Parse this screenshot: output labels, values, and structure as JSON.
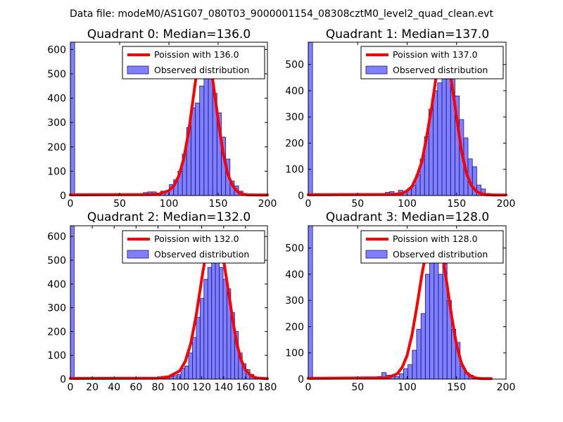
{
  "figure": {
    "suptitle": "Data file: modeM0/AS1G07_080T03_9000001154_08308cztM0_level2_quad_clean.evt"
  },
  "style": {
    "bar_fill": "#0000ff",
    "bar_opacity": 0.5,
    "bar_edge": "#1a1a80",
    "curve_color": "#ff0000"
  },
  "chart_data": [
    {
      "type": "histogram",
      "title": "Quadrant 0: Median=136.0",
      "median": 136.0,
      "xlim": [
        0,
        200
      ],
      "ylim": [
        0,
        630
      ],
      "xticks": [
        0,
        50,
        100,
        150,
        200
      ],
      "xtick_labels": [
        "0",
        "50",
        "100",
        "150",
        "200"
      ],
      "yticks": [
        0,
        100,
        200,
        300,
        400,
        500,
        600
      ],
      "ytick_labels": [
        "0",
        "100",
        "200",
        "300",
        "400",
        "500",
        "600"
      ],
      "legend": {
        "position": "top-right",
        "curve_label": "Poission with 136.0",
        "bar_label": "Observed distribution"
      },
      "bin_width": 4.4,
      "bin_starts": [
        0,
        74,
        78.4,
        82.8,
        87.2,
        91.6,
        96,
        100.4,
        104.8,
        109.2,
        113.6,
        118,
        122.4,
        126.8,
        131.2,
        135.6,
        140,
        144.4,
        148.8,
        153.2,
        157.6,
        162,
        166.4,
        170.8,
        175.2
      ],
      "counts": [
        630,
        12,
        15,
        15,
        8,
        18,
        15,
        45,
        65,
        100,
        170,
        280,
        360,
        380,
        450,
        590,
        490,
        420,
        340,
        240,
        150,
        60,
        40,
        18,
        5
      ],
      "curve_x": [
        0,
        80,
        90,
        100,
        105,
        110,
        115,
        120,
        125,
        128,
        131,
        134,
        136,
        138,
        141,
        144,
        147,
        150,
        155,
        160,
        165,
        170,
        175,
        180,
        190,
        200
      ],
      "curve_y": [
        3,
        4,
        6,
        20,
        40,
        80,
        150,
        260,
        410,
        500,
        570,
        600,
        605,
        600,
        560,
        490,
        400,
        310,
        175,
        85,
        38,
        15,
        6,
        3,
        2,
        2
      ]
    },
    {
      "type": "histogram",
      "title": "Quadrant 1: Median=137.0",
      "median": 137.0,
      "xlim": [
        0,
        200
      ],
      "ylim": [
        0,
        585
      ],
      "xticks": [
        0,
        50,
        100,
        150,
        200
      ],
      "xtick_labels": [
        "0",
        "50",
        "100",
        "150",
        "200"
      ],
      "yticks": [
        0,
        100,
        200,
        300,
        400,
        500
      ],
      "ytick_labels": [
        "0",
        "100",
        "200",
        "300",
        "400",
        "500"
      ],
      "legend": {
        "position": "top-right",
        "curve_label": "Poission with 137.0",
        "bar_label": "Observed distribution"
      },
      "bin_width": 4.4,
      "bin_starts": [
        0,
        78,
        82.4,
        86.8,
        91.2,
        95.6,
        100,
        104.4,
        108.8,
        113.2,
        117.6,
        122,
        126.4,
        130.8,
        135.2,
        139.6,
        144,
        148.4,
        152.8,
        157.2,
        161.6,
        166,
        170.4,
        174.8,
        179.2
      ],
      "counts": [
        585,
        12,
        15,
        8,
        20,
        15,
        25,
        40,
        80,
        140,
        225,
        330,
        400,
        430,
        540,
        560,
        460,
        380,
        290,
        220,
        140,
        110,
        40,
        25,
        8
      ],
      "curve_x": [
        0,
        85,
        95,
        100,
        105,
        110,
        115,
        120,
        125,
        130,
        133,
        136,
        137,
        138,
        141,
        144,
        147,
        150,
        155,
        160,
        165,
        170,
        175,
        180,
        190,
        200
      ],
      "curve_y": [
        3,
        4,
        8,
        18,
        35,
        75,
        130,
        230,
        340,
        470,
        525,
        555,
        560,
        555,
        520,
        455,
        380,
        300,
        170,
        85,
        38,
        16,
        7,
        3,
        2,
        2
      ]
    },
    {
      "type": "histogram",
      "title": "Quadrant 2: Median=132.0",
      "median": 132.0,
      "xlim": [
        0,
        180
      ],
      "ylim": [
        0,
        645
      ],
      "xticks": [
        0,
        20,
        40,
        60,
        80,
        100,
        120,
        140,
        160,
        180
      ],
      "xtick_labels": [
        "0",
        "20",
        "40",
        "60",
        "80",
        "100",
        "120",
        "140",
        "160",
        "180"
      ],
      "yticks": [
        0,
        100,
        200,
        300,
        400,
        500,
        600
      ],
      "ytick_labels": [
        "0",
        "100",
        "200",
        "300",
        "400",
        "500",
        "600"
      ],
      "legend": {
        "position": "top-right",
        "curve_label": "Poission with 132.0",
        "bar_label": "Observed distribution"
      },
      "bin_width": 3.5,
      "bin_starts": [
        0,
        80,
        83.5,
        87,
        90.5,
        94,
        97.5,
        101,
        104.5,
        108,
        111.5,
        115,
        118.5,
        122,
        125.5,
        129,
        132.5,
        136,
        139.5,
        143,
        146.5,
        150,
        153.5,
        157,
        160.5,
        164,
        167.5
      ],
      "counts": [
        645,
        5,
        8,
        5,
        10,
        15,
        20,
        45,
        55,
        110,
        175,
        260,
        340,
        420,
        470,
        580,
        510,
        470,
        420,
        380,
        280,
        200,
        110,
        65,
        40,
        20,
        5
      ],
      "curve_x": [
        0,
        80,
        90,
        100,
        105,
        110,
        115,
        118,
        121,
        124,
        127,
        130,
        132,
        134,
        137,
        140,
        143,
        146,
        149,
        152,
        156,
        160,
        165,
        170,
        180
      ],
      "curve_y": [
        3,
        4,
        10,
        35,
        75,
        150,
        270,
        360,
        450,
        530,
        585,
        615,
        620,
        610,
        570,
        500,
        410,
        320,
        230,
        150,
        80,
        38,
        14,
        5,
        2
      ]
    },
    {
      "type": "histogram",
      "title": "Quadrant 3: Median=128.0",
      "median": 128.0,
      "xlim": [
        0,
        200
      ],
      "ylim": [
        0,
        585
      ],
      "xticks": [
        0,
        50,
        100,
        150,
        200
      ],
      "xtick_labels": [
        "0",
        "50",
        "100",
        "150",
        "200"
      ],
      "yticks": [
        0,
        100,
        200,
        300,
        400,
        500
      ],
      "ytick_labels": [
        "0",
        "100",
        "200",
        "300",
        "400",
        "500"
      ],
      "legend": {
        "position": "top-right",
        "curve_label": "Poission with 128.0",
        "bar_label": "Observed distribution"
      },
      "bin_width": 4.4,
      "bin_starts": [
        0,
        70,
        74.4,
        78.8,
        83.2,
        87.6,
        92,
        96.4,
        100.8,
        105.2,
        109.6,
        114,
        118.4,
        122.8,
        127.2,
        131.6,
        136,
        140.4,
        144.8,
        149.2,
        153.6,
        158,
        162.4,
        166.8
      ],
      "counts": [
        585,
        10,
        25,
        15,
        12,
        10,
        20,
        40,
        55,
        110,
        190,
        250,
        400,
        480,
        540,
        400,
        440,
        300,
        190,
        140,
        50,
        25,
        15,
        5
      ],
      "curve_x": [
        0,
        80,
        90,
        95,
        100,
        105,
        110,
        115,
        120,
        123,
        126,
        128,
        130,
        133,
        136,
        140,
        145,
        150,
        155,
        160,
        165,
        170,
        175,
        180,
        185
      ],
      "curve_y": [
        3,
        5,
        20,
        45,
        90,
        170,
        280,
        400,
        500,
        535,
        550,
        550,
        545,
        520,
        470,
        370,
        240,
        130,
        60,
        25,
        10,
        4,
        2,
        2,
        2
      ]
    }
  ]
}
